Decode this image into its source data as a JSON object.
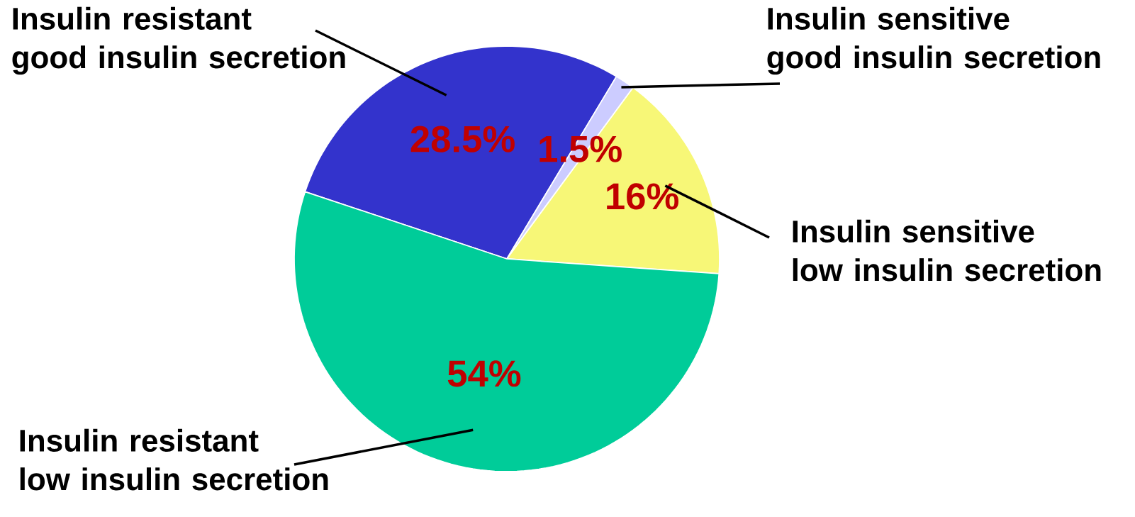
{
  "chart_data": {
    "type": "pie",
    "categories": [
      "Insulin resistant\ngood insulin secretion",
      "Insulin sensitive\ngood insulin secretion",
      "Insulin sensitive\nlow insulin secretion",
      "Insulin resistant\nlow insulin secretion"
    ],
    "values": [
      28.5,
      1.5,
      16,
      54
    ],
    "colors": [
      "#3333cc",
      "#ccccff",
      "#f7f777",
      "#00cc99"
    ],
    "value_labels": [
      "28.5%",
      "1.5%",
      "16%",
      "54%"
    ]
  }
}
